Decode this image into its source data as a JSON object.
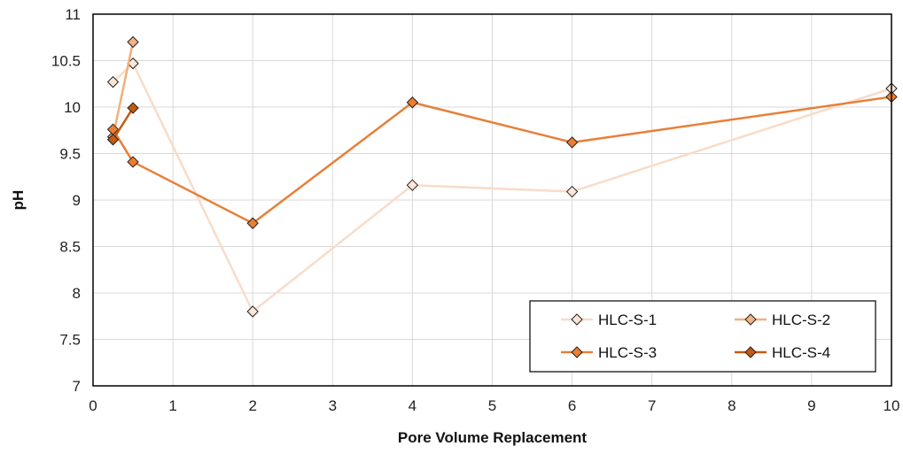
{
  "chart_data": {
    "type": "scatter",
    "title": "",
    "xlabel": "Pore Volume Replacement",
    "ylabel": "pH",
    "xlim": [
      0,
      10
    ],
    "ylim": [
      7,
      11
    ],
    "xticks": [
      "0",
      "1",
      "2",
      "3",
      "4",
      "5",
      "6",
      "7",
      "8",
      "9",
      "10"
    ],
    "yticks": [
      "7",
      "7.5",
      "8",
      "8.5",
      "9",
      "9.5",
      "10",
      "10.5",
      "11"
    ],
    "grid": true,
    "legend_position": "bottom-right",
    "series": [
      {
        "name": "HLC-S-1",
        "color": "#f8dcc8",
        "marker_fill": "#fbe5d6",
        "points": [
          [
            0.25,
            10.27
          ],
          [
            0.5,
            10.47
          ],
          [
            2,
            7.8
          ],
          [
            4,
            9.16
          ],
          [
            6,
            9.09
          ],
          [
            10,
            10.2
          ]
        ]
      },
      {
        "name": "HLC-S-2",
        "color": "#f2b07a",
        "marker_fill": "#f4b183",
        "points": [
          [
            0.25,
            9.68
          ],
          [
            0.5,
            10.7
          ]
        ]
      },
      {
        "name": "HLC-S-3",
        "color": "#e87f38",
        "marker_fill": "#ed7d31",
        "points": [
          [
            0.25,
            9.76
          ],
          [
            0.5,
            9.41
          ],
          [
            2,
            8.75
          ],
          [
            4,
            10.05
          ],
          [
            6,
            9.62
          ],
          [
            10,
            10.11
          ]
        ]
      },
      {
        "name": "HLC-S-4",
        "color": "#c55a11",
        "marker_fill": "#c55a11",
        "points": [
          [
            0.25,
            9.65
          ],
          [
            0.5,
            9.99
          ]
        ]
      }
    ]
  }
}
